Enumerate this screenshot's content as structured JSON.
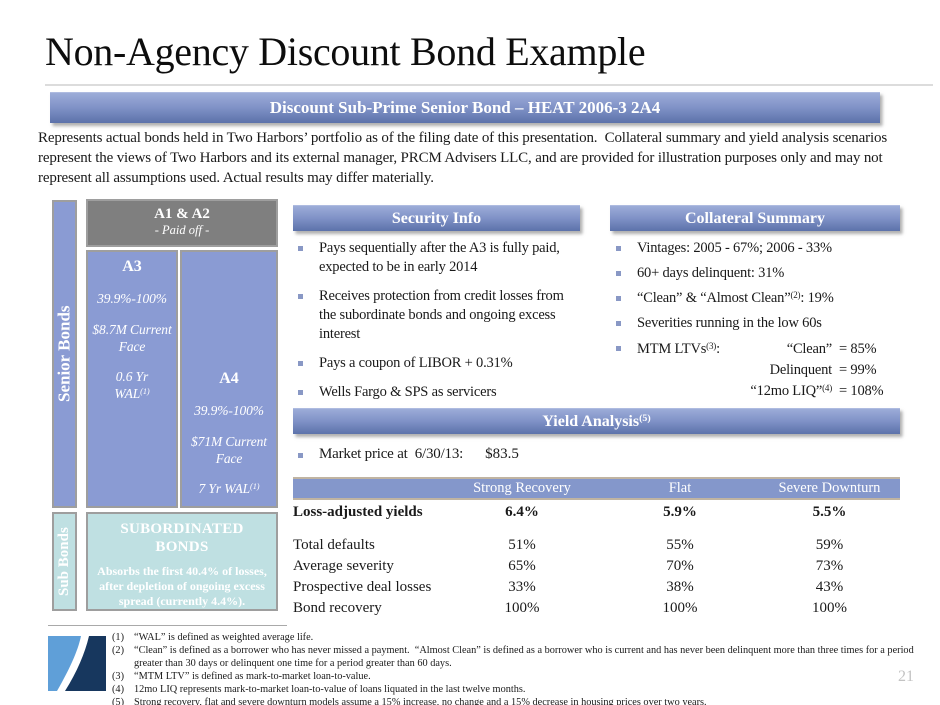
{
  "title": "Non-Agency Discount Bond Example",
  "banner": {
    "text": "Discount Sub-Prime Senior Bond – HEAT 2006-3 2A4"
  },
  "disclaimer": "Represents actual bonds held in Two Harbors’ portfolio as of the filing date of this presentation.  Collateral summary and yield analysis scenarios represent the views of Two Harbors and its external manager, PRCM Advisers LLC, and are provided for illustration purposes only and may not represent all assumptions used. Actual results may differ materially.",
  "diagram": {
    "senior_label": "Senior Bonds",
    "sub_label": "Sub Bonds",
    "a1a2": {
      "title": "A1 & A2",
      "subtitle": "- Paid off -"
    },
    "a3": {
      "title": "A3",
      "range": "39.9%-100%",
      "face_lines": [
        "$8.7M Current",
        "Face"
      ],
      "wal_lines": [
        "0.6 Yr",
        "WAL^{(1)}"
      ]
    },
    "a4": {
      "title": "A4",
      "range": "39.9%-100%",
      "face_lines": [
        "$71M Current",
        "Face"
      ],
      "wal": "7 Yr WAL^{(1)}"
    },
    "sub_box": {
      "title": "SUBORDINATED BONDS",
      "body": "Absorbs the first 40.4% of losses, after depletion of ongoing excess spread (currently 4.4%)."
    }
  },
  "security_info": {
    "title": "Security Info",
    "bullets": [
      "Pays sequentially after the A3 is fully paid, expected to be in early 2014",
      "Receives protection from credit losses from the subordinate bonds and ongoing excess interest",
      "Pays a coupon of LIBOR + 0.31%",
      "Wells Fargo & SPS as servicers"
    ]
  },
  "collateral_summary": {
    "title": "Collateral Summary",
    "bullets": [
      "Vintages: 2005 - 67%; 2006 - 33%",
      "60+ days delinquent: 31%",
      "“Clean” & “Almost Clean”^{(2)}: 19%",
      "Severities running in the low 60s"
    ],
    "mtm": {
      "label": "MTM LTVs^{(3)}:",
      "rows": [
        {
          "term": "“Clean”",
          "value": "= 85%"
        },
        {
          "term": "Delinquent",
          "value": "= 99%"
        },
        {
          "term": "“12mo LIQ”^{(4)}",
          "value": "= 108%"
        }
      ]
    }
  },
  "yield_analysis": {
    "title": "Yield Analysis^{(5)}",
    "market_price_label": "Market price at  6/30/13:",
    "market_price_value": "$83.5",
    "table": {
      "columns": [
        "",
        "Strong Recovery",
        "Flat",
        "Severe Downturn"
      ],
      "rows": [
        {
          "label": "Loss-adjusted yields",
          "values": [
            "6.4%",
            "5.9%",
            "5.5%"
          ]
        },
        {
          "label": "Total defaults",
          "values": [
            "51%",
            "55%",
            "59%"
          ]
        },
        {
          "label": "Average severity",
          "values": [
            "65%",
            "70%",
            "73%"
          ]
        },
        {
          "label": "Prospective deal losses",
          "values": [
            "33%",
            "38%",
            "43%"
          ]
        },
        {
          "label": "Bond recovery",
          "values": [
            "100%",
            "100%",
            "100%"
          ]
        }
      ]
    }
  },
  "footnotes": [
    {
      "num": "(1)",
      "text": "“WAL” is defined as weighted average life."
    },
    {
      "num": "(2)",
      "text": "“Clean” is defined as a borrower who has never missed a payment.  “Almost Clean” is defined as a borrower who is current and has never been delinquent more than three times for a period greater than 30 days or delinquent one time for a period greater than 60 days."
    },
    {
      "num": "(3)",
      "text": "“MTM LTV” is defined as mark-to-market loan-to-value."
    },
    {
      "num": "(4)",
      "text": "12mo LIQ represents mark-to-market loan-to-value of loans liquated in the last twelve months."
    },
    {
      "num": "(5)",
      "text": "Strong recovery, flat and severe downturn models assume a 15% increase, no change and a 15% decrease in housing prices over two years."
    }
  ],
  "page": {
    "number": "21"
  },
  "colors": {
    "periwinkle": "#8a9bd3",
    "header_gradient_top": "#9cacd8",
    "header_gradient_bottom": "#5c72aa",
    "gray_box": "#7f7f7f",
    "teal_box": "#bfe0e2",
    "table_strip": "#8497cb",
    "logo_light_blue": "#5f9fd8",
    "logo_navy": "#17375e"
  }
}
